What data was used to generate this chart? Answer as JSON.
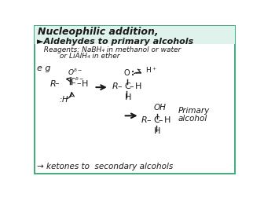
{
  "bg_color": "#f5f0e8",
  "border_color": "#5aaa8a",
  "text_color": "#1a1a1a",
  "title": "Nucleophilic addition,",
  "subtitle": "►Aldehydes to primary alcohols",
  "reagents_line1": "  Reagents: NaBH₄ in methanol or water",
  "reagents_line2": "         or LiAlH₄ in ether",
  "eg_label": "e g",
  "ketones_line": "→ ketones to  secondary alcohols",
  "primary_label": "Primary",
  "alcohol_label": "alcohol"
}
